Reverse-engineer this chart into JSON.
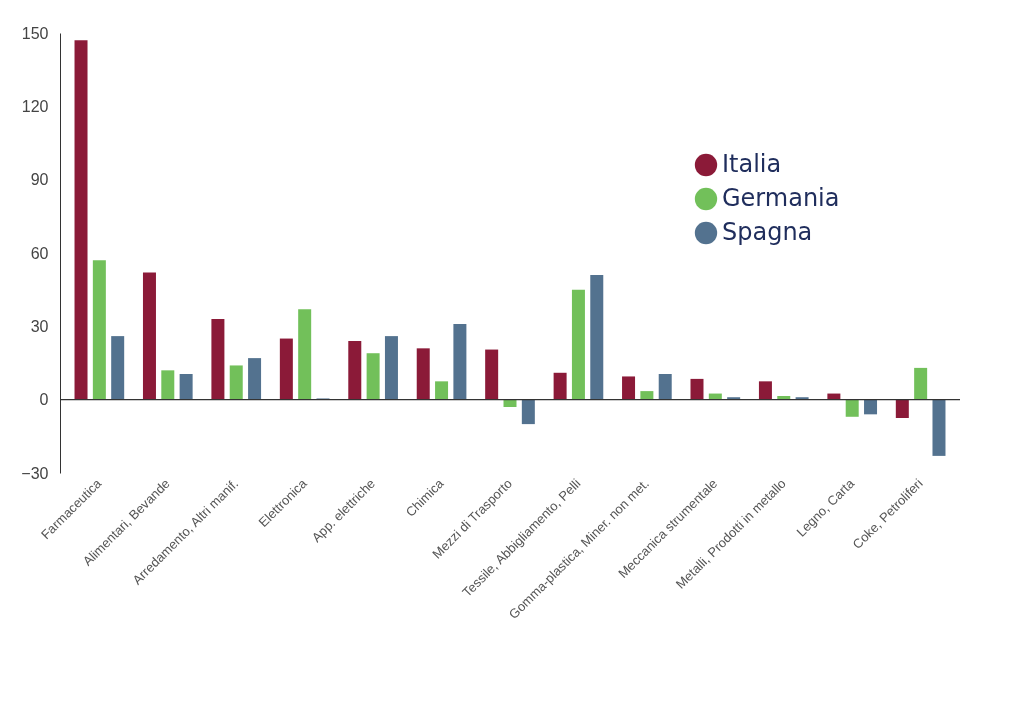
{
  "chart_data": {
    "type": "bar",
    "categories": [
      "Farmaceutica",
      "Alimentari, Bevande",
      "Arredamento, Altri manif.",
      "Elettronica",
      "App. elettriche",
      "Chimica",
      "Mezzi di Trasporto",
      "Tessile, Abbigliamento, Pelli",
      "Gomma-plastica, Miner. non met.",
      "Meccanica strumentale",
      "Metalli, Prodotti in metallo",
      "Legno, Carta",
      "Coke, Petroliferi"
    ],
    "series": [
      {
        "name": "Italia",
        "color": "#8b1a38",
        "values": [
          147,
          52,
          33,
          25,
          24,
          21,
          20.5,
          11,
          9.5,
          8.5,
          7.5,
          2.5,
          -7.5
        ]
      },
      {
        "name": "Germania",
        "color": "#72c05a",
        "values": [
          57,
          12,
          14,
          37,
          19,
          7.5,
          -3,
          45,
          3.5,
          2.5,
          1.5,
          -7,
          13
        ]
      },
      {
        "name": "Spagna",
        "color": "#53728f",
        "values": [
          26,
          10.5,
          17,
          0.5,
          26,
          31,
          -10,
          51,
          10.5,
          1,
          1,
          -6,
          -23
        ]
      }
    ],
    "ylim": [
      -30,
      150
    ],
    "yticks": [
      -30,
      0,
      30,
      60,
      90,
      120,
      150
    ],
    "ref_lines": [
      {
        "axis": "y",
        "value": 0
      }
    ],
    "grid": false,
    "legend": "top right"
  }
}
